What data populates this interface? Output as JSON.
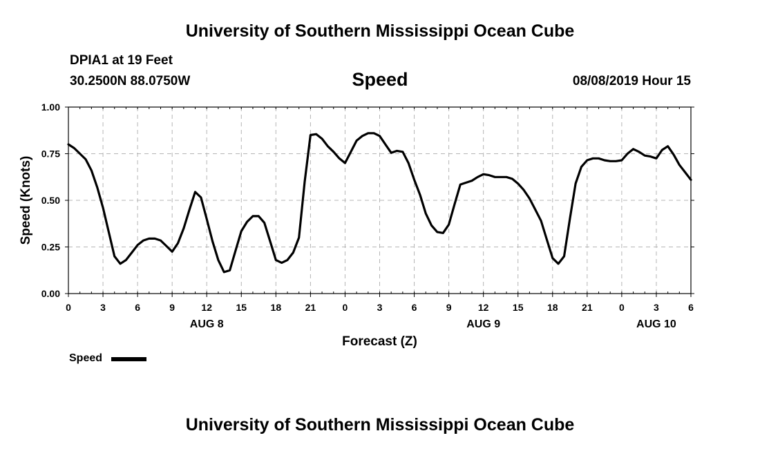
{
  "header": {
    "org_title": "University of Southern Mississippi Ocean Cube",
    "station": "DPIA1 at 19 Feet",
    "coords": "30.2500N 88.0750W",
    "timestamp": "08/08/2019 Hour 15",
    "footer_title": "University of Southern Mississippi Ocean Cube"
  },
  "legend": {
    "label": "Speed"
  },
  "chart_data": {
    "type": "line",
    "title": "Speed",
    "xlabel": "Forecast (Z)",
    "ylabel": "Speed (Knots)",
    "ylim": [
      0,
      1
    ],
    "xlim": [
      0,
      54
    ],
    "grid": true,
    "legend_position": "bottom-left",
    "yticks": [
      "0.00",
      "0.25",
      "0.50",
      "0.75",
      "1.00"
    ],
    "xticks": [
      "0",
      "3",
      "6",
      "9",
      "12",
      "15",
      "18",
      "21",
      "0",
      "3",
      "6",
      "9",
      "12",
      "15",
      "18",
      "21",
      "0",
      "3",
      "6"
    ],
    "date_labels": [
      {
        "hour": 12,
        "label": "AUG 8"
      },
      {
        "hour": 36,
        "label": "AUG 9"
      },
      {
        "hour": 51,
        "label": "AUG 10"
      }
    ],
    "series": [
      {
        "name": "Speed",
        "color": "#000000",
        "points": [
          [
            0,
            0.8
          ],
          [
            0.5,
            0.78
          ],
          [
            1,
            0.75
          ],
          [
            1.5,
            0.72
          ],
          [
            2,
            0.66
          ],
          [
            2.5,
            0.57
          ],
          [
            3,
            0.46
          ],
          [
            3.5,
            0.33
          ],
          [
            4,
            0.2
          ],
          [
            4.5,
            0.16
          ],
          [
            5,
            0.18
          ],
          [
            5.5,
            0.22
          ],
          [
            6,
            0.26
          ],
          [
            6.5,
            0.285
          ],
          [
            7,
            0.295
          ],
          [
            7.5,
            0.295
          ],
          [
            8,
            0.285
          ],
          [
            8.5,
            0.255
          ],
          [
            9,
            0.225
          ],
          [
            9.5,
            0.27
          ],
          [
            10,
            0.35
          ],
          [
            10.5,
            0.45
          ],
          [
            11,
            0.545
          ],
          [
            11.5,
            0.515
          ],
          [
            12,
            0.4
          ],
          [
            12.5,
            0.28
          ],
          [
            13,
            0.18
          ],
          [
            13.5,
            0.115
          ],
          [
            14,
            0.125
          ],
          [
            14.5,
            0.23
          ],
          [
            15,
            0.335
          ],
          [
            15.5,
            0.385
          ],
          [
            16,
            0.415
          ],
          [
            16.5,
            0.415
          ],
          [
            17,
            0.38
          ],
          [
            17.5,
            0.28
          ],
          [
            18,
            0.18
          ],
          [
            18.5,
            0.165
          ],
          [
            19,
            0.18
          ],
          [
            19.5,
            0.22
          ],
          [
            20,
            0.3
          ],
          [
            20.5,
            0.6
          ],
          [
            21,
            0.85
          ],
          [
            21.5,
            0.855
          ],
          [
            22,
            0.83
          ],
          [
            22.5,
            0.79
          ],
          [
            23,
            0.76
          ],
          [
            23.5,
            0.725
          ],
          [
            24,
            0.7
          ],
          [
            24.5,
            0.76
          ],
          [
            25,
            0.82
          ],
          [
            25.5,
            0.845
          ],
          [
            26,
            0.86
          ],
          [
            26.5,
            0.86
          ],
          [
            27,
            0.845
          ],
          [
            27.5,
            0.8
          ],
          [
            28,
            0.755
          ],
          [
            28.5,
            0.765
          ],
          [
            29,
            0.76
          ],
          [
            29.5,
            0.7
          ],
          [
            30,
            0.61
          ],
          [
            30.5,
            0.53
          ],
          [
            31,
            0.43
          ],
          [
            31.5,
            0.365
          ],
          [
            32,
            0.33
          ],
          [
            32.5,
            0.325
          ],
          [
            33,
            0.37
          ],
          [
            33.5,
            0.48
          ],
          [
            34,
            0.585
          ],
          [
            34.5,
            0.595
          ],
          [
            35,
            0.605
          ],
          [
            35.5,
            0.625
          ],
          [
            36,
            0.64
          ],
          [
            36.5,
            0.635
          ],
          [
            37,
            0.625
          ],
          [
            37.5,
            0.625
          ],
          [
            38,
            0.625
          ],
          [
            38.5,
            0.615
          ],
          [
            39,
            0.59
          ],
          [
            39.5,
            0.555
          ],
          [
            40,
            0.51
          ],
          [
            40.5,
            0.45
          ],
          [
            41,
            0.39
          ],
          [
            41.5,
            0.29
          ],
          [
            42,
            0.19
          ],
          [
            42.5,
            0.16
          ],
          [
            43,
            0.2
          ],
          [
            43.5,
            0.4
          ],
          [
            44,
            0.59
          ],
          [
            44.5,
            0.68
          ],
          [
            45,
            0.715
          ],
          [
            45.5,
            0.725
          ],
          [
            46,
            0.725
          ],
          [
            46.5,
            0.715
          ],
          [
            47,
            0.71
          ],
          [
            47.5,
            0.71
          ],
          [
            48,
            0.715
          ],
          [
            48.5,
            0.75
          ],
          [
            49,
            0.775
          ],
          [
            49.5,
            0.76
          ],
          [
            50,
            0.74
          ],
          [
            50.5,
            0.735
          ],
          [
            51,
            0.725
          ],
          [
            51.5,
            0.77
          ],
          [
            52,
            0.79
          ],
          [
            52.5,
            0.745
          ],
          [
            53,
            0.69
          ],
          [
            53.5,
            0.65
          ],
          [
            54,
            0.61
          ]
        ]
      }
    ]
  }
}
